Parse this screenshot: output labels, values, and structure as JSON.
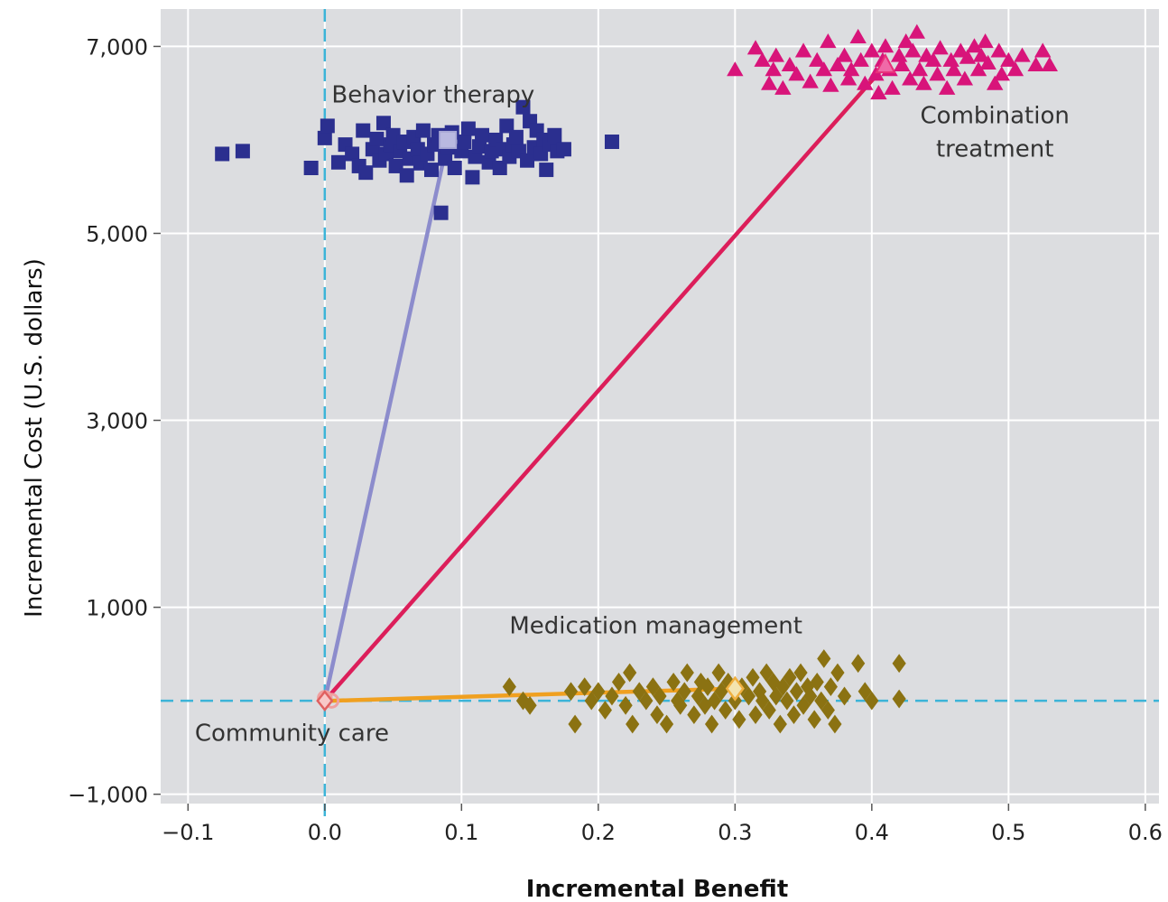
{
  "chart_data": {
    "type": "scatter",
    "title": "",
    "xlabel": "Incremental Benefit",
    "ylabel": "Incremental Cost (U.S. dollars)",
    "xlim": [
      -0.12,
      0.61
    ],
    "ylim": [
      -1100,
      7400
    ],
    "xticks": [
      -0.1,
      0.0,
      0.1,
      0.2,
      0.3,
      0.4,
      0.5,
      0.6
    ],
    "xtick_labels": [
      "−0.1",
      "0.0",
      "0.1",
      "0.2",
      "0.3",
      "0.4",
      "0.5",
      "0.6"
    ],
    "yticks": [
      -1000,
      1000,
      3000,
      5000,
      7000
    ],
    "ytick_labels": [
      "−1,000",
      "1,000",
      "3,000",
      "5,000",
      "7,000"
    ],
    "grid": true,
    "reference_lines": {
      "x": 0,
      "y": 0,
      "color": "#3cb4d8"
    },
    "colors": {
      "plot_background": "#dcdde0",
      "behavior_therapy": "#2b2f8f",
      "combination_treatment": "#d8147a",
      "medication_management": "#8b7212",
      "community_care": "#f0a0a0",
      "behavior_line": "#8c8ccc",
      "combination_line": "#dc1e5a",
      "medication_line": "#f0a020"
    },
    "series": [
      {
        "name": "Behavior therapy",
        "marker": "square",
        "mean": [
          0.09,
          6000
        ],
        "points": [
          [
            -0.075,
            5850
          ],
          [
            -0.06,
            5880
          ],
          [
            -0.01,
            5700
          ],
          [
            0.0,
            6020
          ],
          [
            0.002,
            6150
          ],
          [
            0.01,
            5760
          ],
          [
            0.015,
            5950
          ],
          [
            0.02,
            5850
          ],
          [
            0.025,
            5720
          ],
          [
            0.028,
            6100
          ],
          [
            0.03,
            5650
          ],
          [
            0.035,
            5900
          ],
          [
            0.038,
            6010
          ],
          [
            0.04,
            5780
          ],
          [
            0.043,
            6180
          ],
          [
            0.045,
            5850
          ],
          [
            0.048,
            5950
          ],
          [
            0.05,
            6050
          ],
          [
            0.052,
            5720
          ],
          [
            0.055,
            5880
          ],
          [
            0.058,
            5980
          ],
          [
            0.06,
            5620
          ],
          [
            0.062,
            5800
          ],
          [
            0.065,
            6030
          ],
          [
            0.068,
            5900
          ],
          [
            0.07,
            5750
          ],
          [
            0.072,
            6100
          ],
          [
            0.075,
            5850
          ],
          [
            0.078,
            5680
          ],
          [
            0.08,
            5950
          ],
          [
            0.083,
            6050
          ],
          [
            0.085,
            5220
          ],
          [
            0.088,
            5800
          ],
          [
            0.09,
            5920
          ],
          [
            0.093,
            6080
          ],
          [
            0.095,
            5700
          ],
          [
            0.1,
            5880
          ],
          [
            0.102,
            5980
          ],
          [
            0.105,
            6120
          ],
          [
            0.108,
            5600
          ],
          [
            0.11,
            5820
          ],
          [
            0.113,
            5930
          ],
          [
            0.115,
            6050
          ],
          [
            0.12,
            5760
          ],
          [
            0.122,
            5880
          ],
          [
            0.125,
            6000
          ],
          [
            0.128,
            5700
          ],
          [
            0.13,
            5900
          ],
          [
            0.133,
            6150
          ],
          [
            0.135,
            5820
          ],
          [
            0.138,
            5950
          ],
          [
            0.14,
            6030
          ],
          [
            0.142,
            5880
          ],
          [
            0.145,
            6350
          ],
          [
            0.148,
            5780
          ],
          [
            0.15,
            6200
          ],
          [
            0.153,
            5920
          ],
          [
            0.155,
            6100
          ],
          [
            0.158,
            5850
          ],
          [
            0.16,
            6000
          ],
          [
            0.162,
            5680
          ],
          [
            0.165,
            5950
          ],
          [
            0.168,
            6050
          ],
          [
            0.17,
            5880
          ],
          [
            0.175,
            5900
          ],
          [
            0.21,
            5980
          ]
        ]
      },
      {
        "name": "Combination treatment",
        "marker": "triangle",
        "mean": [
          0.41,
          6800
        ],
        "points": [
          [
            0.3,
            6750
          ],
          [
            0.315,
            6980
          ],
          [
            0.32,
            6850
          ],
          [
            0.325,
            6600
          ],
          [
            0.328,
            6750
          ],
          [
            0.33,
            6900
          ],
          [
            0.335,
            6550
          ],
          [
            0.34,
            6800
          ],
          [
            0.345,
            6700
          ],
          [
            0.35,
            6950
          ],
          [
            0.355,
            6620
          ],
          [
            0.36,
            6850
          ],
          [
            0.365,
            6750
          ],
          [
            0.368,
            7050
          ],
          [
            0.37,
            6580
          ],
          [
            0.375,
            6800
          ],
          [
            0.38,
            6900
          ],
          [
            0.383,
            6650
          ],
          [
            0.385,
            6750
          ],
          [
            0.39,
            7100
          ],
          [
            0.392,
            6850
          ],
          [
            0.395,
            6600
          ],
          [
            0.4,
            6950
          ],
          [
            0.403,
            6700
          ],
          [
            0.405,
            6500
          ],
          [
            0.408,
            6850
          ],
          [
            0.41,
            7000
          ],
          [
            0.413,
            6750
          ],
          [
            0.415,
            6550
          ],
          [
            0.42,
            6900
          ],
          [
            0.422,
            6800
          ],
          [
            0.425,
            7050
          ],
          [
            0.428,
            6650
          ],
          [
            0.43,
            6950
          ],
          [
            0.433,
            7150
          ],
          [
            0.435,
            6750
          ],
          [
            0.438,
            6600
          ],
          [
            0.44,
            6900
          ],
          [
            0.445,
            6850
          ],
          [
            0.448,
            6700
          ],
          [
            0.45,
            6980
          ],
          [
            0.455,
            6550
          ],
          [
            0.458,
            6850
          ],
          [
            0.46,
            6750
          ],
          [
            0.465,
            6950
          ],
          [
            0.468,
            6650
          ],
          [
            0.47,
            6880
          ],
          [
            0.475,
            7000
          ],
          [
            0.478,
            6750
          ],
          [
            0.48,
            6900
          ],
          [
            0.483,
            7050
          ],
          [
            0.485,
            6820
          ],
          [
            0.49,
            6600
          ],
          [
            0.493,
            6950
          ],
          [
            0.495,
            6700
          ],
          [
            0.5,
            6850
          ],
          [
            0.505,
            6750
          ],
          [
            0.51,
            6900
          ],
          [
            0.52,
            6800
          ],
          [
            0.525,
            6950
          ],
          [
            0.53,
            6800
          ]
        ]
      },
      {
        "name": "Medication management",
        "marker": "diamond",
        "mean": [
          0.3,
          130
        ],
        "points": [
          [
            0.135,
            150
          ],
          [
            0.145,
            0
          ],
          [
            0.15,
            -50
          ],
          [
            0.18,
            100
          ],
          [
            0.183,
            -250
          ],
          [
            0.19,
            150
          ],
          [
            0.195,
            0
          ],
          [
            0.2,
            100
          ],
          [
            0.205,
            -100
          ],
          [
            0.21,
            50
          ],
          [
            0.215,
            200
          ],
          [
            0.22,
            -50
          ],
          [
            0.223,
            300
          ],
          [
            0.225,
            -250
          ],
          [
            0.23,
            100
          ],
          [
            0.235,
            0
          ],
          [
            0.24,
            150
          ],
          [
            0.243,
            -150
          ],
          [
            0.245,
            50
          ],
          [
            0.25,
            -250
          ],
          [
            0.255,
            200
          ],
          [
            0.258,
            0
          ],
          [
            0.26,
            -50
          ],
          [
            0.263,
            100
          ],
          [
            0.265,
            300
          ],
          [
            0.27,
            -150
          ],
          [
            0.273,
            50
          ],
          [
            0.275,
            200
          ],
          [
            0.278,
            -50
          ],
          [
            0.28,
            150
          ],
          [
            0.283,
            -250
          ],
          [
            0.285,
            0
          ],
          [
            0.288,
            300
          ],
          [
            0.29,
            100
          ],
          [
            0.293,
            -100
          ],
          [
            0.295,
            200
          ],
          [
            0.3,
            0
          ],
          [
            0.303,
            -200
          ],
          [
            0.305,
            150
          ],
          [
            0.31,
            50
          ],
          [
            0.313,
            250
          ],
          [
            0.315,
            -150
          ],
          [
            0.318,
            100
          ],
          [
            0.32,
            0
          ],
          [
            0.323,
            300
          ],
          [
            0.325,
            -100
          ],
          [
            0.328,
            200
          ],
          [
            0.33,
            50
          ],
          [
            0.333,
            -250
          ],
          [
            0.335,
            150
          ],
          [
            0.338,
            0
          ],
          [
            0.34,
            250
          ],
          [
            0.343,
            -150
          ],
          [
            0.345,
            100
          ],
          [
            0.348,
            300
          ],
          [
            0.35,
            -50
          ],
          [
            0.353,
            150
          ],
          [
            0.355,
            50
          ],
          [
            0.358,
            -200
          ],
          [
            0.36,
            200
          ],
          [
            0.363,
            0
          ],
          [
            0.365,
            450
          ],
          [
            0.368,
            -100
          ],
          [
            0.37,
            150
          ],
          [
            0.373,
            -250
          ],
          [
            0.375,
            300
          ],
          [
            0.38,
            50
          ],
          [
            0.39,
            400
          ],
          [
            0.395,
            100
          ],
          [
            0.4,
            0
          ],
          [
            0.42,
            400
          ],
          [
            0.42,
            20
          ]
        ]
      },
      {
        "name": "Community care",
        "marker": "circle",
        "mean": [
          0.0,
          0
        ],
        "points": [
          [
            0.0,
            30
          ],
          [
            0.005,
            0
          ]
        ]
      }
    ],
    "mean_lines": [
      {
        "name": "Behavior therapy",
        "from": [
          0.0,
          0
        ],
        "to": [
          0.09,
          6000
        ]
      },
      {
        "name": "Combination treatment",
        "from": [
          0.0,
          0
        ],
        "to": [
          0.41,
          6800
        ]
      },
      {
        "name": "Medication management",
        "from": [
          0.005,
          0
        ],
        "to": [
          0.3,
          130
        ]
      }
    ],
    "annotations": [
      {
        "text": "Behavior therapy",
        "x": 0.005,
        "y": 6400,
        "anchor": "start"
      },
      {
        "text": "Combination",
        "x": 0.49,
        "y": 6180,
        "anchor": "middle"
      },
      {
        "text": "treatment",
        "x": 0.49,
        "y": 5820,
        "anchor": "middle"
      },
      {
        "text": "Medication management",
        "x": 0.135,
        "y": 720,
        "anchor": "start"
      },
      {
        "text": "Community care",
        "x": -0.095,
        "y": -430,
        "anchor": "start"
      }
    ]
  }
}
